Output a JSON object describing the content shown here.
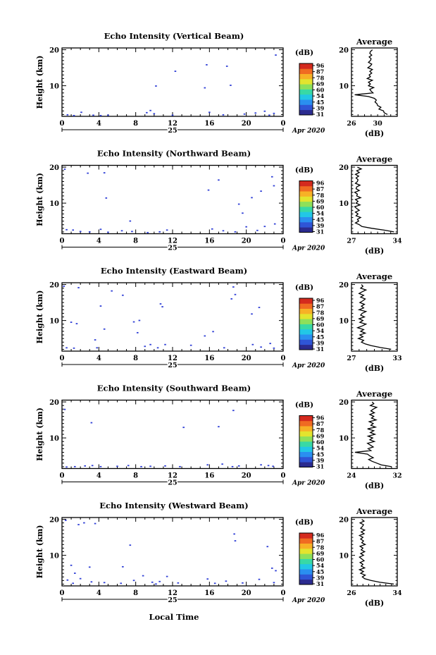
{
  "figure": {
    "date_label": "Apr 2020",
    "day_label": "25",
    "xlabel": "Local Time"
  },
  "colorbar": {
    "unit": "(dB)",
    "ticks": [
      "96",
      "87",
      "78",
      "69",
      "60",
      "54",
      "45",
      "39",
      "31"
    ],
    "colors": [
      "#2b2b8f",
      "#2f55d6",
      "#2a8ff0",
      "#22c7e6",
      "#38d9a5",
      "#8ee05a",
      "#e3e42e",
      "#f7b126",
      "#f06b22",
      "#d42a1e"
    ]
  },
  "chart_data": [
    {
      "type": "heatmap",
      "title": "Echo Intensity (Vertical Beam)",
      "xlabel": "",
      "ylabel": "Height (km)",
      "x_ticks": [
        "0",
        "4",
        "8",
        "12",
        "16",
        "20",
        "0"
      ],
      "y_ticks": [
        "20",
        "10"
      ],
      "xlim": [
        0,
        24
      ],
      "ylim": [
        1.5,
        20.5
      ],
      "points": [
        {
          "t": 0.6,
          "h": 1.9
        },
        {
          "t": 1.3,
          "h": 1.7
        },
        {
          "t": 2.1,
          "h": 2.6
        },
        {
          "t": 3.4,
          "h": 1.8
        },
        {
          "t": 4.2,
          "h": 1.7
        },
        {
          "t": 5.0,
          "h": 1.8
        },
        {
          "t": 9.2,
          "h": 2.5
        },
        {
          "t": 9.6,
          "h": 3.1
        },
        {
          "t": 10.0,
          "h": 2.2
        },
        {
          "t": 10.2,
          "h": 9.9
        },
        {
          "t": 12.0,
          "h": 1.8
        },
        {
          "t": 12.3,
          "h": 14.0
        },
        {
          "t": 15.5,
          "h": 9.4
        },
        {
          "t": 15.7,
          "h": 15.8
        },
        {
          "t": 16.0,
          "h": 2.6
        },
        {
          "t": 17.9,
          "h": 15.4
        },
        {
          "t": 18.3,
          "h": 10.1
        },
        {
          "t": 17.5,
          "h": 1.9
        },
        {
          "t": 19.8,
          "h": 2.1
        },
        {
          "t": 21.0,
          "h": 2.4
        },
        {
          "t": 22.0,
          "h": 2.9
        },
        {
          "t": 22.5,
          "h": 1.8
        },
        {
          "t": 23.0,
          "h": 2.3
        },
        {
          "t": 23.2,
          "h": 18.5
        }
      ],
      "average": {
        "xlabel": "(dB)",
        "title": "Average",
        "x_ticks": [
          "26",
          "30"
        ],
        "xlim": [
          26,
          33
        ],
        "y_ticks": [
          "20",
          "10"
        ],
        "values": [
          31.5,
          31.0,
          30.9,
          30.2,
          30.5,
          30.0,
          29.9,
          29.6,
          29.8,
          29.5,
          28.6,
          26.5,
          29.3,
          29.0,
          28.8,
          29.4,
          28.6,
          28.9,
          28.6,
          29.2,
          28.4,
          28.9,
          28.7,
          29.1,
          28.8,
          29.2,
          28.5,
          28.9,
          29.1,
          28.6,
          28.9,
          29.0,
          28.7,
          29.1,
          28.8,
          28.9,
          29.2
        ]
      }
    },
    {
      "type": "heatmap",
      "title": "Echo Intensity (Northward Beam)",
      "xlabel": "",
      "ylabel": "Height (km)",
      "x_ticks": [
        "0",
        "4",
        "8",
        "12",
        "16",
        "20",
        "0"
      ],
      "y_ticks": [
        "20",
        "10"
      ],
      "xlim": [
        0,
        24
      ],
      "ylim": [
        1.5,
        20.5
      ],
      "points": [
        {
          "t": 0.3,
          "h": 19.4
        },
        {
          "t": 2.8,
          "h": 18.3
        },
        {
          "t": 4.6,
          "h": 18.4
        },
        {
          "t": 4.8,
          "h": 11.4
        },
        {
          "t": 7.4,
          "h": 5.0
        },
        {
          "t": 0.5,
          "h": 2.6
        },
        {
          "t": 1.2,
          "h": 2.5
        },
        {
          "t": 2.0,
          "h": 2.1
        },
        {
          "t": 3.0,
          "h": 2.0
        },
        {
          "t": 4.2,
          "h": 2.7
        },
        {
          "t": 5.0,
          "h": 1.9
        },
        {
          "t": 6.5,
          "h": 2.3
        },
        {
          "t": 7.6,
          "h": 2.1
        },
        {
          "t": 9.3,
          "h": 1.8
        },
        {
          "t": 10.6,
          "h": 2.0
        },
        {
          "t": 11.4,
          "h": 2.5
        },
        {
          "t": 15.9,
          "h": 13.6
        },
        {
          "t": 16.3,
          "h": 2.8
        },
        {
          "t": 17.0,
          "h": 16.4
        },
        {
          "t": 17.5,
          "h": 2.3
        },
        {
          "t": 18.8,
          "h": 2.0
        },
        {
          "t": 19.2,
          "h": 9.7
        },
        {
          "t": 19.6,
          "h": 7.2
        },
        {
          "t": 20.6,
          "h": 11.5
        },
        {
          "t": 20.0,
          "h": 3.4
        },
        {
          "t": 21.2,
          "h": 2.4
        },
        {
          "t": 21.6,
          "h": 13.3
        },
        {
          "t": 22.0,
          "h": 3.5
        },
        {
          "t": 22.8,
          "h": 17.3
        },
        {
          "t": 23.0,
          "h": 14.8
        },
        {
          "t": 23.1,
          "h": 4.2
        }
      ],
      "average": {
        "xlabel": "(dB)",
        "title": "Average",
        "x_ticks": [
          "27",
          "34"
        ],
        "xlim": [
          27,
          34
        ],
        "y_ticks": [
          "20",
          "10"
        ],
        "values": [
          33.5,
          32.0,
          30.1,
          28.6,
          28.2,
          27.6,
          28.1,
          27.9,
          28.4,
          27.7,
          28.0,
          27.6,
          28.2,
          27.8,
          27.5,
          28.3,
          27.7,
          28.0,
          27.6,
          28.4,
          27.8,
          27.9,
          27.5,
          28.2,
          27.7,
          27.8,
          28.3,
          27.6,
          27.9,
          28.0,
          27.7,
          28.1,
          27.6,
          28.2,
          27.8,
          28.5,
          27.9
        ]
      }
    },
    {
      "type": "heatmap",
      "title": "Echo Intensity (Eastward Beam)",
      "xlabel": "",
      "ylabel": "Height (km)",
      "x_ticks": [
        "0",
        "4",
        "8",
        "12",
        "16",
        "20",
        "0"
      ],
      "y_ticks": [
        "20",
        "10"
      ],
      "xlim": [
        0,
        24
      ],
      "ylim": [
        1.5,
        20.5
      ],
      "points": [
        {
          "t": 0.2,
          "h": 19.5
        },
        {
          "t": 1.8,
          "h": 19.1
        },
        {
          "t": 4.2,
          "h": 14.0
        },
        {
          "t": 5.4,
          "h": 18.2
        },
        {
          "t": 6.6,
          "h": 17.0
        },
        {
          "t": 7.8,
          "h": 9.6
        },
        {
          "t": 8.2,
          "h": 6.6
        },
        {
          "t": 8.4,
          "h": 10.0
        },
        {
          "t": 10.7,
          "h": 14.6
        },
        {
          "t": 10.9,
          "h": 13.8
        },
        {
          "t": 1.0,
          "h": 9.5
        },
        {
          "t": 1.6,
          "h": 9.1
        },
        {
          "t": 0.5,
          "h": 2.4
        },
        {
          "t": 1.3,
          "h": 2.3
        },
        {
          "t": 3.8,
          "h": 2.4
        },
        {
          "t": 3.6,
          "h": 4.6
        },
        {
          "t": 4.6,
          "h": 7.6
        },
        {
          "t": 9.0,
          "h": 2.8
        },
        {
          "t": 9.6,
          "h": 3.3
        },
        {
          "t": 10.4,
          "h": 2.4
        },
        {
          "t": 11.2,
          "h": 3.3
        },
        {
          "t": 14.0,
          "h": 3.1
        },
        {
          "t": 15.5,
          "h": 5.7
        },
        {
          "t": 16.4,
          "h": 6.9
        },
        {
          "t": 18.6,
          "h": 19.3
        },
        {
          "t": 18.8,
          "h": 17.2
        },
        {
          "t": 18.4,
          "h": 16.0
        },
        {
          "t": 20.6,
          "h": 11.8
        },
        {
          "t": 21.4,
          "h": 13.6
        },
        {
          "t": 20.7,
          "h": 3.3
        },
        {
          "t": 21.6,
          "h": 2.6
        },
        {
          "t": 22.6,
          "h": 3.6
        },
        {
          "t": 23.0,
          "h": 2.3
        },
        {
          "t": 17.6,
          "h": 2.4
        }
      ],
      "average": {
        "xlabel": "(dB)",
        "title": "Average",
        "x_ticks": [
          "27",
          "33"
        ],
        "xlim": [
          27,
          33
        ],
        "y_ticks": [
          "20",
          "10"
        ],
        "values": [
          32.2,
          30.8,
          29.6,
          28.8,
          28.3,
          28.6,
          27.9,
          28.5,
          28.1,
          28.8,
          28.2,
          28.6,
          27.8,
          28.4,
          28.9,
          28.1,
          28.5,
          28.0,
          28.7,
          28.2,
          28.4,
          28.9,
          28.0,
          28.6,
          28.3,
          28.7,
          28.1,
          28.5,
          28.8,
          28.2,
          28.6,
          28.0,
          28.4,
          28.9,
          28.2,
          28.5,
          28.3
        ]
      }
    },
    {
      "type": "heatmap",
      "title": "Echo Intensity (Southward Beam)",
      "xlabel": "",
      "ylabel": "Height (km)",
      "x_ticks": [
        "0",
        "4",
        "8",
        "12",
        "16",
        "20",
        "0"
      ],
      "y_ticks": [
        "20",
        "10"
      ],
      "xlim": [
        0,
        24
      ],
      "ylim": [
        1.5,
        20.5
      ],
      "points": [
        {
          "t": 0.3,
          "h": 17.9
        },
        {
          "t": 3.2,
          "h": 14.2
        },
        {
          "t": 13.2,
          "h": 12.9
        },
        {
          "t": 17.0,
          "h": 13.1
        },
        {
          "t": 18.6,
          "h": 17.6
        },
        {
          "t": 0.5,
          "h": 1.9
        },
        {
          "t": 1.4,
          "h": 2.0
        },
        {
          "t": 2.5,
          "h": 2.2
        },
        {
          "t": 3.3,
          "h": 2.3
        },
        {
          "t": 4.2,
          "h": 2.0
        },
        {
          "t": 6.0,
          "h": 2.1
        },
        {
          "t": 7.2,
          "h": 2.3
        },
        {
          "t": 8.6,
          "h": 2.0
        },
        {
          "t": 9.6,
          "h": 2.1
        },
        {
          "t": 11.2,
          "h": 2.2
        },
        {
          "t": 12.8,
          "h": 2.0
        },
        {
          "t": 15.8,
          "h": 2.5
        },
        {
          "t": 17.4,
          "h": 2.7
        },
        {
          "t": 18.5,
          "h": 2.0
        },
        {
          "t": 19.2,
          "h": 2.2
        },
        {
          "t": 21.6,
          "h": 2.5
        },
        {
          "t": 22.4,
          "h": 2.3
        },
        {
          "t": 22.9,
          "h": 2.1
        }
      ],
      "average": {
        "xlabel": "(dB)",
        "title": "Average",
        "x_ticks": [
          "24",
          "32"
        ],
        "xlim": [
          24,
          32
        ],
        "y_ticks": [
          "20",
          "10"
        ],
        "values": [
          31.0,
          29.2,
          28.4,
          27.6,
          27.0,
          27.8,
          27.2,
          26.8,
          24.6,
          27.4,
          26.9,
          27.8,
          27.3,
          26.8,
          28.0,
          27.2,
          27.7,
          26.9,
          28.1,
          27.3,
          27.9,
          26.8,
          28.2,
          27.4,
          27.8,
          27.1,
          28.3,
          27.5,
          27.9,
          27.2,
          28.0,
          27.4,
          27.8,
          28.4,
          27.3,
          27.9,
          27.6
        ]
      }
    },
    {
      "type": "heatmap",
      "title": "Echo Intensity (Westward Beam)",
      "xlabel": "Local Time",
      "ylabel": "Height (km)",
      "x_ticks": [
        "0",
        "4",
        "8",
        "12",
        "16",
        "20",
        "0"
      ],
      "y_ticks": [
        "20",
        "10"
      ],
      "xlim": [
        0,
        24
      ],
      "ylim": [
        1.5,
        20.5
      ],
      "points": [
        {
          "t": 0.4,
          "h": 19.7
        },
        {
          "t": 1.8,
          "h": 18.5
        },
        {
          "t": 2.4,
          "h": 19.0
        },
        {
          "t": 3.6,
          "h": 18.8
        },
        {
          "t": 7.4,
          "h": 12.8
        },
        {
          "t": 6.6,
          "h": 6.8
        },
        {
          "t": 3.0,
          "h": 6.7
        },
        {
          "t": 1.0,
          "h": 7.2
        },
        {
          "t": 1.4,
          "h": 5.0
        },
        {
          "t": 2.0,
          "h": 3.5
        },
        {
          "t": 0.6,
          "h": 3.1
        },
        {
          "t": 1.2,
          "h": 2.2
        },
        {
          "t": 3.2,
          "h": 2.6
        },
        {
          "t": 4.6,
          "h": 2.4
        },
        {
          "t": 6.4,
          "h": 2.2
        },
        {
          "t": 7.8,
          "h": 3.0
        },
        {
          "t": 8.8,
          "h": 4.3
        },
        {
          "t": 9.8,
          "h": 2.5
        },
        {
          "t": 10.2,
          "h": 2.0
        },
        {
          "t": 10.6,
          "h": 2.7
        },
        {
          "t": 11.4,
          "h": 4.1
        },
        {
          "t": 12.6,
          "h": 2.3
        },
        {
          "t": 15.8,
          "h": 3.4
        },
        {
          "t": 16.6,
          "h": 2.2
        },
        {
          "t": 17.8,
          "h": 2.8
        },
        {
          "t": 18.7,
          "h": 15.9
        },
        {
          "t": 18.8,
          "h": 14.0
        },
        {
          "t": 19.6,
          "h": 2.3
        },
        {
          "t": 21.4,
          "h": 3.3
        },
        {
          "t": 22.3,
          "h": 12.4
        },
        {
          "t": 22.8,
          "h": 6.4
        },
        {
          "t": 23.2,
          "h": 5.7
        },
        {
          "t": 23.0,
          "h": 2.4
        }
      ],
      "average": {
        "xlabel": "(dB)",
        "title": "Average",
        "x_ticks": [
          "26",
          "34"
        ],
        "xlim": [
          26,
          34
        ],
        "y_ticks": [
          "20",
          "10"
        ],
        "values": [
          33.4,
          31.0,
          29.4,
          28.3,
          27.9,
          28.4,
          27.6,
          28.1,
          27.4,
          28.3,
          27.7,
          28.0,
          27.5,
          28.2,
          27.8,
          27.4,
          28.1,
          27.6,
          28.3,
          27.7,
          28.0,
          27.5,
          28.4,
          27.8,
          28.1,
          27.6,
          28.0,
          27.4,
          28.2,
          27.7,
          28.3,
          27.6,
          27.9,
          28.1,
          27.5,
          28.2,
          27.8
        ]
      }
    }
  ]
}
